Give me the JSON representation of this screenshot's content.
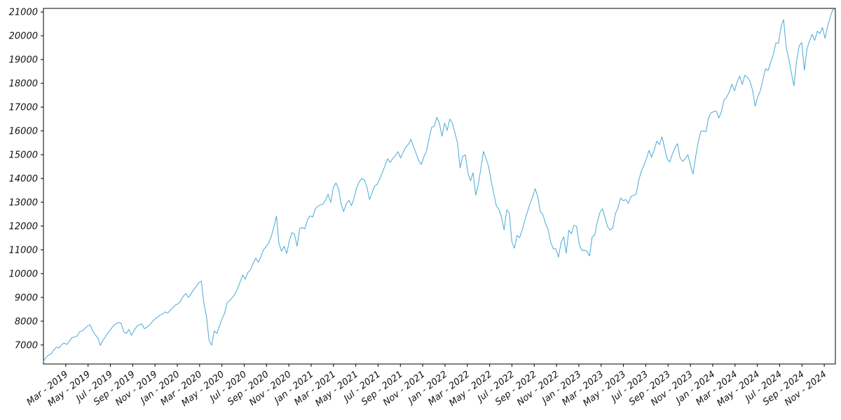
{
  "chart_data": {
    "type": "line",
    "title": "",
    "xlabel": "",
    "ylabel": "",
    "legend": "none",
    "grid": false,
    "line_color": "#4aa9d6",
    "axis_color": "#000000",
    "background": "#ffffff",
    "ylim": [
      6200,
      21150
    ],
    "y_ticks": [
      7000,
      8000,
      9000,
      10000,
      11000,
      12000,
      13000,
      14000,
      15000,
      16000,
      17000,
      18000,
      19000,
      20000,
      21000
    ],
    "x_ticks": {
      "labels": [
        "Mar - 2019",
        "May - 2019",
        "Jul - 2019",
        "Sep - 2019",
        "Nov - 2019",
        "Jan - 2020",
        "Mar - 2020",
        "May - 2020",
        "Jul - 2020",
        "Sep - 2020",
        "Nov - 2020",
        "Jan - 2021",
        "Mar - 2021",
        "May - 2021",
        "Jul - 2021",
        "Sep - 2021",
        "Nov - 2021",
        "Jan - 2022",
        "Mar - 2022",
        "May - 2022",
        "Jul - 2022",
        "Sep - 2022",
        "Nov - 2022",
        "Jan - 2023",
        "Mar - 2023",
        "May - 2023",
        "Jul - 2023",
        "Sep - 2023",
        "Nov - 2023",
        "Jan - 2024",
        "Mar - 2024",
        "May - 2024",
        "Jul - 2024",
        "Sep - 2024",
        "Nov - 2024"
      ],
      "start_month_offset": 2,
      "step_months": 2,
      "total_months_span": 71
    },
    "values": [
      6315,
      6480,
      6570,
      6630,
      6790,
      6910,
      6870,
      7010,
      7080,
      7020,
      7150,
      7310,
      7330,
      7380,
      7560,
      7590,
      7690,
      7790,
      7850,
      7600,
      7420,
      7310,
      6980,
      7200,
      7350,
      7520,
      7650,
      7810,
      7880,
      7950,
      7910,
      7560,
      7480,
      7650,
      7400,
      7600,
      7770,
      7850,
      7890,
      7680,
      7750,
      7830,
      7970,
      8090,
      8160,
      8250,
      8300,
      8390,
      8340,
      8460,
      8570,
      8680,
      8730,
      8850,
      9050,
      9160,
      9000,
      9150,
      9320,
      9450,
      9620,
      9680,
      8740,
      8200,
      7200,
      6990,
      7590,
      7490,
      7790,
      8090,
      8340,
      8790,
      8870,
      9000,
      9150,
      9370,
      9660,
      9940,
      9760,
      10050,
      10150,
      10420,
      10650,
      10480,
      10710,
      11000,
      11130,
      11290,
      11560,
      11950,
      12420,
      11270,
      10940,
      11150,
      10850,
      11370,
      11720,
      11660,
      11150,
      11890,
      11940,
      11880,
      12260,
      12430,
      12380,
      12710,
      12840,
      12888,
      12920,
      13090,
      13340,
      12990,
      13610,
      13810,
      13580,
      12930,
      12610,
      12940,
      13080,
      12860,
      13160,
      13600,
      13850,
      14000,
      13940,
      13630,
      13120,
      13410,
      13680,
      13770,
      14000,
      14270,
      14550,
      14830,
      14680,
      14840,
      14960,
      15130,
      14860,
      15100,
      15320,
      15430,
      15650,
      15330,
      15050,
      14740,
      14590,
      14900,
      15150,
      15680,
      16150,
      16200,
      16573,
      16310,
      15780,
      16330,
      16020,
      16500,
      16320,
      15910,
      15500,
      14440,
      14930,
      15000,
      14250,
      13900,
      14240,
      13300,
      13750,
      14420,
      15140,
      14840,
      14500,
      13890,
      13360,
      12850,
      12700,
      12370,
      11840,
      12680,
      12550,
      11330,
      11070,
      11610,
      11510,
      11840,
      12250,
      12600,
      12940,
      13210,
      13570,
      13240,
      12600,
      12480,
      12100,
      11860,
      11310,
      11040,
      11040,
      10690,
      11310,
      11550,
      10860,
      11820,
      11680,
      12030,
      11990,
      11240,
      10980,
      10985,
      10940,
      10740,
      11540,
      11620,
      12170,
      12570,
      12730,
      12360,
      11970,
      11830,
      11930,
      12520,
      12770,
      13180,
      13070,
      13110,
      12960,
      13240,
      13290,
      13340,
      13920,
      14300,
      14550,
      14840,
      15180,
      14890,
      15200,
      15570,
      15420,
      15750,
      15280,
      14820,
      14690,
      15030,
      15280,
      15460,
      14860,
      14720,
      14840,
      15000,
      14560,
      14180,
      14920,
      15530,
      15980,
      16000,
      15970,
      16560,
      16760,
      16810,
      16830,
      16540,
      16830,
      17310,
      17420,
      17640,
      17960,
      17690,
      18040,
      18300,
      17950,
      18340,
      18250,
      18100,
      17710,
      17040,
      17430,
      17690,
      18160,
      18610,
      18540,
      18890,
      19210,
      19700,
      19680,
      20390,
      20680,
      19520,
      19020,
      18440,
      17895,
      18930,
      19570,
      19720,
      18550,
      19430,
      19790,
      20060,
      19800,
      20190,
      20090,
      20350,
      19890,
      20390,
      20780,
      21100,
      21090
    ]
  }
}
